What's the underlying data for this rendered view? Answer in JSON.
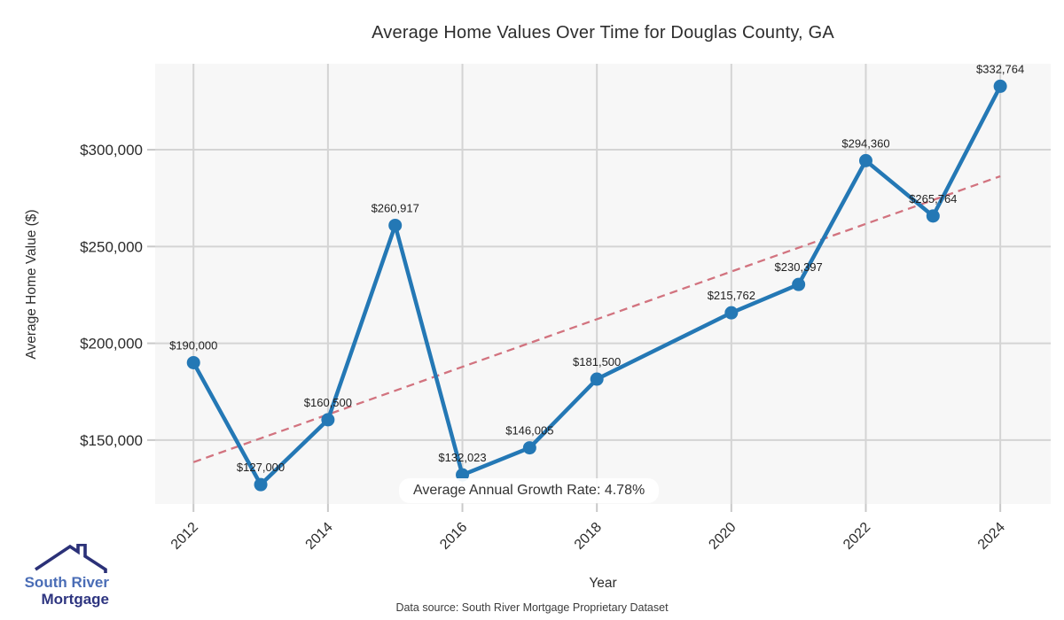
{
  "chart_data": {
    "type": "line",
    "title": "Average Home Values Over Time for Douglas County, GA",
    "xlabel": "Year",
    "ylabel": "Average Home Value ($)",
    "x": [
      2012,
      2013,
      2014,
      2015,
      2016,
      2017,
      2018,
      2020,
      2021,
      2022,
      2023,
      2024
    ],
    "series": [
      {
        "name": "Average Home Value",
        "values": [
          190000,
          127000,
          160500,
          260917,
          132023,
          146005,
          181500,
          215762,
          230397,
          294360,
          265764,
          332764
        ],
        "color": "#2478b5"
      }
    ],
    "point_labels": [
      "$190,000",
      "$127,000",
      "$160,500",
      "$260,917",
      "$132,023",
      "$146,005",
      "$181,500",
      "$215,762",
      "$230,397",
      "$294,360",
      "$265,764",
      "$332,764"
    ],
    "trend_line": {
      "style": "dashed",
      "x": [
        2012,
        2024
      ],
      "values": [
        138600,
        286300
      ],
      "color": "#d2737f"
    },
    "annotation": "Average Annual Growth Rate: 4.78%",
    "x_ticks": [
      2012,
      2014,
      2016,
      2018,
      2020,
      2022,
      2024
    ],
    "y_ticks": [
      150000,
      200000,
      250000,
      300000
    ],
    "y_tick_labels": [
      "$150,000",
      "$200,000",
      "$250,000",
      "$300,000"
    ],
    "xlim": [
      2011.43,
      2024.75
    ],
    "ylim": [
      117000,
      344400
    ],
    "grid": true,
    "legend": "none",
    "plot_bg": "#f7f7f7",
    "grid_color": "#d4d4d4",
    "tick_color": "#c9c9c9",
    "tick_label_color": "#2b2b2b",
    "point_label_color": "#1f1f1f"
  },
  "footer": {
    "source": "Data source: South River Mortgage Proprietary Dataset"
  },
  "logo": {
    "line1": "South River",
    "line2": "Mortgage",
    "color1": "#4a6db6",
    "color2": "#2e3580",
    "icon_color": "#2b3178"
  }
}
